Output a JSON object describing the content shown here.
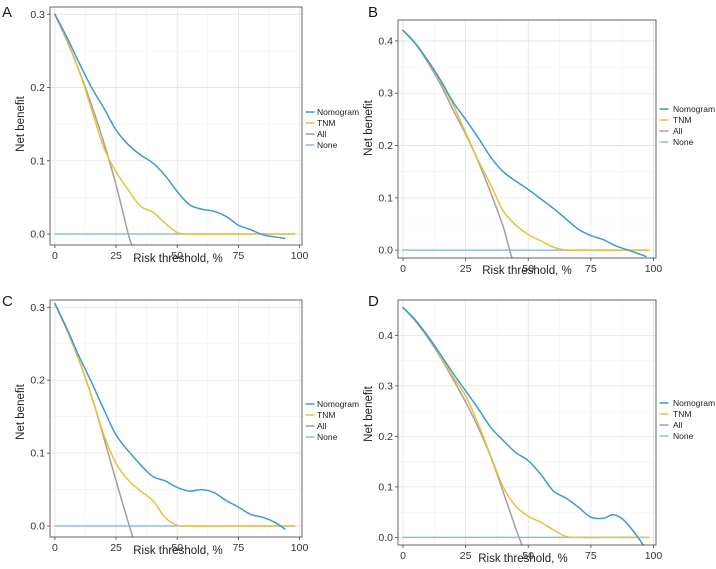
{
  "colors": {
    "Nomogram": "#3d9ad6",
    "TNM": "#e8c23b",
    "All": "#a0a0a0",
    "None": "#8fbde6"
  },
  "chart_data": [
    {
      "type": "line",
      "panel": "A",
      "xlabel": "Risk threshold, %",
      "ylabel": "Net benefit",
      "xlim": [
        -2,
        101
      ],
      "ylim": [
        -0.015,
        0.31
      ],
      "xticks": [
        "0",
        "25",
        "50",
        "75",
        "100"
      ],
      "yticks": [
        "0.0",
        "0.1",
        "0.2",
        "0.3"
      ],
      "grid": true,
      "legend": [
        "Nomogram",
        "TNM",
        "All",
        "None"
      ],
      "legend_position": "right",
      "series": [
        {
          "name": "Nomogram",
          "x": [
            0,
            5,
            10,
            15,
            20,
            25,
            30,
            35,
            40,
            45,
            50,
            55,
            60,
            65,
            70,
            75,
            80,
            85,
            90,
            94
          ],
          "y": [
            0.3,
            0.268,
            0.233,
            0.2,
            0.172,
            0.142,
            0.122,
            0.108,
            0.097,
            0.08,
            0.058,
            0.04,
            0.034,
            0.031,
            0.024,
            0.012,
            0.006,
            -0.001,
            -0.004,
            -0.006
          ]
        },
        {
          "name": "TNM",
          "x": [
            0,
            5,
            10,
            15,
            20,
            25,
            30,
            35,
            40,
            45,
            50,
            55,
            60,
            70,
            80,
            90,
            98
          ],
          "y": [
            0.3,
            0.264,
            0.222,
            0.17,
            0.118,
            0.085,
            0.06,
            0.038,
            0.03,
            0.015,
            0.002,
            0.0,
            0.0,
            0.0,
            0.0,
            0.0,
            0.0
          ]
        },
        {
          "name": "All",
          "x": [
            0,
            5,
            10,
            15,
            20,
            25,
            30,
            31.5
          ],
          "y": [
            0.3,
            0.263,
            0.222,
            0.176,
            0.125,
            0.067,
            0.0,
            -0.015
          ]
        },
        {
          "name": "None",
          "x": [
            0,
            98
          ],
          "y": [
            0,
            0
          ]
        }
      ]
    },
    {
      "type": "line",
      "panel": "B",
      "xlabel": "Risk threshold, %",
      "ylabel": "Net benefit",
      "xlim": [
        -2,
        101
      ],
      "ylim": [
        -0.015,
        0.44
      ],
      "xticks": [
        "0",
        "25",
        "50",
        "75",
        "100"
      ],
      "yticks": [
        "0.0",
        "0.1",
        "0.2",
        "0.3",
        "0.4"
      ],
      "grid": true,
      "legend": [
        "Nomogram",
        "TNM",
        "All",
        "None"
      ],
      "legend_position": "right",
      "series": [
        {
          "name": "Nomogram",
          "x": [
            0,
            5,
            10,
            15,
            20,
            25,
            30,
            35,
            40,
            45,
            50,
            55,
            60,
            65,
            70,
            75,
            80,
            85,
            90,
            97
          ],
          "y": [
            0.42,
            0.395,
            0.362,
            0.325,
            0.283,
            0.25,
            0.215,
            0.178,
            0.15,
            0.132,
            0.116,
            0.098,
            0.08,
            0.06,
            0.04,
            0.028,
            0.02,
            0.008,
            0.0,
            -0.012
          ]
        },
        {
          "name": "TNM",
          "x": [
            0,
            5,
            10,
            15,
            20,
            25,
            30,
            35,
            40,
            45,
            50,
            55,
            60,
            65,
            70,
            80,
            90,
            98
          ],
          "y": [
            0.42,
            0.395,
            0.361,
            0.322,
            0.278,
            0.225,
            0.172,
            0.125,
            0.075,
            0.048,
            0.03,
            0.018,
            0.006,
            0.0,
            0.0,
            0.0,
            0.0,
            0.0
          ]
        },
        {
          "name": "All",
          "x": [
            0,
            5,
            10,
            15,
            20,
            25,
            30,
            35,
            40,
            42,
            43.5
          ],
          "y": [
            0.42,
            0.394,
            0.358,
            0.317,
            0.268,
            0.222,
            0.17,
            0.11,
            0.045,
            0.01,
            -0.015
          ]
        },
        {
          "name": "None",
          "x": [
            0,
            98
          ],
          "y": [
            0,
            0
          ]
        }
      ]
    },
    {
      "type": "line",
      "panel": "C",
      "xlabel": "Risk threshold, %",
      "ylabel": "Net benefit",
      "xlim": [
        -2,
        101
      ],
      "ylim": [
        -0.015,
        0.31
      ],
      "xticks": [
        "0",
        "25",
        "50",
        "75",
        "100"
      ],
      "yticks": [
        "0.0",
        "0.1",
        "0.2",
        "0.3"
      ],
      "grid": true,
      "legend": [
        "Nomogram",
        "TNM",
        "All",
        "None"
      ],
      "legend_position": "right",
      "series": [
        {
          "name": "Nomogram",
          "x": [
            0,
            5,
            10,
            15,
            20,
            25,
            30,
            35,
            40,
            45,
            50,
            55,
            60,
            65,
            70,
            75,
            80,
            85,
            90,
            94
          ],
          "y": [
            0.305,
            0.27,
            0.232,
            0.197,
            0.16,
            0.125,
            0.103,
            0.084,
            0.068,
            0.062,
            0.053,
            0.048,
            0.05,
            0.046,
            0.035,
            0.026,
            0.016,
            0.012,
            0.005,
            -0.004
          ]
        },
        {
          "name": "TNM",
          "x": [
            0,
            5,
            10,
            15,
            20,
            25,
            30,
            35,
            40,
            45,
            50,
            55,
            60,
            70,
            80,
            90,
            98
          ],
          "y": [
            0.305,
            0.268,
            0.226,
            0.178,
            0.125,
            0.086,
            0.063,
            0.048,
            0.035,
            0.012,
            0.001,
            0.0,
            0.0,
            0.0,
            0.0,
            0.0,
            0.0
          ]
        },
        {
          "name": "All",
          "x": [
            0,
            5,
            10,
            15,
            20,
            25,
            30,
            31.8
          ],
          "y": [
            0.305,
            0.268,
            0.226,
            0.178,
            0.121,
            0.062,
            0.005,
            -0.015
          ]
        },
        {
          "name": "None",
          "x": [
            0,
            98
          ],
          "y": [
            0,
            0
          ]
        }
      ]
    },
    {
      "type": "line",
      "panel": "D",
      "xlabel": "Risk threshold, %",
      "ylabel": "Net benefit",
      "xlim": [
        -2,
        101
      ],
      "ylim": [
        -0.015,
        0.47
      ],
      "xticks": [
        "0",
        "25",
        "50",
        "75",
        "100"
      ],
      "yticks": [
        "0.0",
        "0.1",
        "0.2",
        "0.3",
        "0.4"
      ],
      "grid": true,
      "legend": [
        "Nomogram",
        "TNM",
        "All",
        "None"
      ],
      "legend_position": "right",
      "series": [
        {
          "name": "Nomogram",
          "x": [
            0,
            5,
            10,
            15,
            20,
            25,
            30,
            35,
            40,
            45,
            50,
            55,
            60,
            65,
            70,
            75,
            80,
            84,
            88,
            92,
            96
          ],
          "y": [
            0.455,
            0.43,
            0.398,
            0.362,
            0.325,
            0.29,
            0.255,
            0.218,
            0.192,
            0.168,
            0.152,
            0.125,
            0.092,
            0.078,
            0.06,
            0.04,
            0.038,
            0.045,
            0.035,
            0.012,
            -0.015
          ]
        },
        {
          "name": "TNM",
          "x": [
            0,
            5,
            10,
            15,
            20,
            25,
            30,
            35,
            40,
            45,
            50,
            55,
            60,
            65,
            70,
            80,
            90,
            98
          ],
          "y": [
            0.455,
            0.43,
            0.397,
            0.358,
            0.318,
            0.28,
            0.225,
            0.162,
            0.1,
            0.062,
            0.042,
            0.03,
            0.015,
            0.002,
            0.0,
            0.0,
            0.0,
            0.0
          ]
        },
        {
          "name": "All",
          "x": [
            0,
            5,
            10,
            15,
            20,
            25,
            30,
            35,
            40,
            45,
            47.5
          ],
          "y": [
            0.455,
            0.428,
            0.395,
            0.356,
            0.313,
            0.268,
            0.218,
            0.16,
            0.09,
            0.018,
            -0.015
          ]
        },
        {
          "name": "None",
          "x": [
            0,
            98
          ],
          "y": [
            0,
            0
          ]
        }
      ]
    }
  ]
}
